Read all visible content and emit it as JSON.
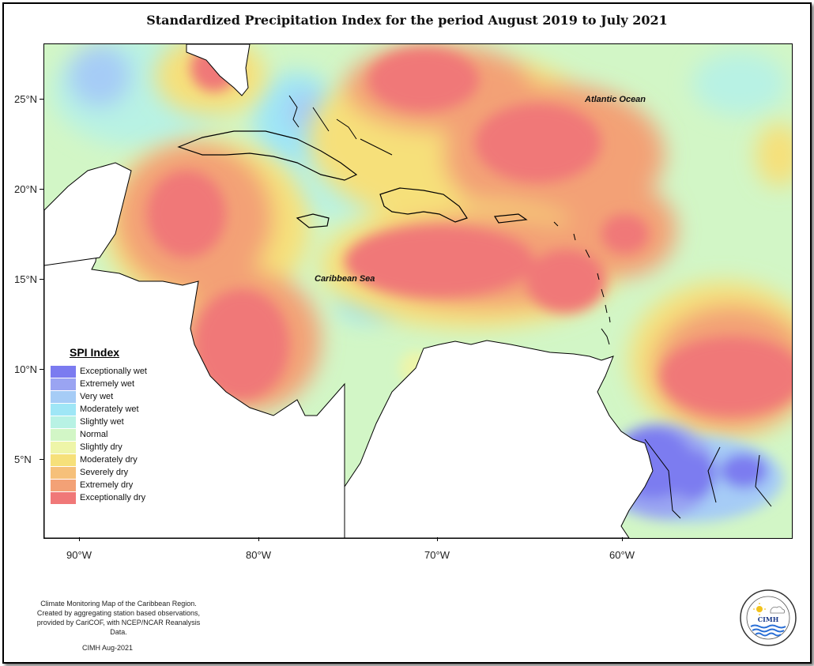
{
  "title": "Standardized Precipitation Index for the period August 2019 to July 2021",
  "axes": {
    "y_ticks": [
      "25°N",
      "20°N",
      "15°N",
      "10°N",
      "5°N"
    ],
    "x_ticks": [
      "90°W",
      "80°W",
      "70°W",
      "60°W"
    ]
  },
  "map_labels": {
    "atlantic": "Atlantic Ocean",
    "caribbean": "Caribbean Sea"
  },
  "legend": {
    "title": "SPI Index",
    "items": [
      {
        "label": "Exceptionally wet",
        "color": "#7b7bf0"
      },
      {
        "label": "Extremely wet",
        "color": "#9aa4f2"
      },
      {
        "label": "Very wet",
        "color": "#a6ccf6"
      },
      {
        "label": "Moderately wet",
        "color": "#9fe6f6"
      },
      {
        "label": "Slightly wet",
        "color": "#b8f2e4"
      },
      {
        "label": "Normal",
        "color": "#d2f6c6"
      },
      {
        "label": "Slightly dry",
        "color": "#eef5a8"
      },
      {
        "label": "Moderately dry",
        "color": "#f6e07a"
      },
      {
        "label": "Severely dry",
        "color": "#f6c07a"
      },
      {
        "label": "Extremely dry",
        "color": "#f3a176"
      },
      {
        "label": "Exceptionally dry",
        "color": "#f07878"
      }
    ]
  },
  "footnote": {
    "line1": "Climate Monitoring Map of the Caribbean Region.",
    "line2": "Created by aggregating station based observations,",
    "line3": "provided by CariCOF, with NCEP/NCAR Reanalysis Data."
  },
  "credit": "CIMH Aug-2021",
  "logo": {
    "text": "CIMH",
    "icon": "cimh-sun-cloud-waves-logo"
  }
}
